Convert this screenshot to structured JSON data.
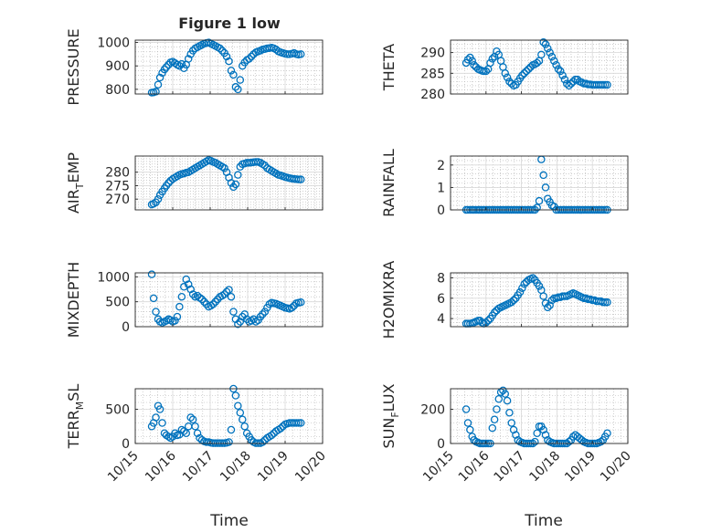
{
  "figure": {
    "title": "Figure 1 low",
    "xlabel": "Time"
  },
  "x_ticks": [
    "10/15",
    "10/16",
    "10/17",
    "10/18",
    "10/19",
    "10/20"
  ],
  "colors": {
    "marker": "#0072BD",
    "axis": "#262626",
    "grid": "#b0b0b0"
  },
  "chart_data": [
    {
      "type": "scatter",
      "ylabel": "PRESSURE",
      "xlim": [
        0,
        5
      ],
      "ylim": [
        780,
        1010
      ],
      "yticks": [
        800,
        900,
        1000
      ],
      "minor_grid": true,
      "x": [
        0.44,
        0.49,
        0.55,
        0.61,
        0.66,
        0.72,
        0.78,
        0.83,
        0.89,
        0.94,
        1.0,
        1.06,
        1.12,
        1.18,
        1.24,
        1.3,
        1.36,
        1.42,
        1.48,
        1.54,
        1.6,
        1.66,
        1.72,
        1.78,
        1.84,
        1.9,
        1.96,
        2.02,
        2.08,
        2.14,
        2.2,
        2.26,
        2.32,
        2.38,
        2.44,
        2.5,
        2.56,
        2.62,
        2.68,
        2.74,
        2.8,
        2.86,
        2.92,
        2.98,
        3.04,
        3.1,
        3.16,
        3.22,
        3.28,
        3.34,
        3.4,
        3.46,
        3.52,
        3.58,
        3.64,
        3.7,
        3.76,
        3.82,
        3.88,
        3.94,
        4.0,
        4.06,
        4.12,
        4.18,
        4.24,
        4.3,
        4.36,
        4.42
      ],
      "y": [
        786,
        787,
        790,
        820,
        850,
        870,
        885,
        895,
        905,
        915,
        918,
        912,
        905,
        900,
        908,
        890,
        905,
        930,
        950,
        965,
        975,
        980,
        985,
        990,
        995,
        998,
        1000,
        995,
        990,
        985,
        980,
        975,
        965,
        955,
        940,
        920,
        880,
        862,
        810,
        800,
        840,
        900,
        915,
        925,
        930,
        940,
        950,
        958,
        962,
        965,
        970,
        972,
        975,
        976,
        978,
        975,
        970,
        962,
        958,
        955,
        952,
        950,
        950,
        952,
        955,
        950,
        948,
        950
      ]
    },
    {
      "type": "scatter",
      "ylabel": "THETA",
      "xlim": [
        0,
        5
      ],
      "ylim": [
        280,
        293
      ],
      "yticks": [
        280,
        285,
        290
      ],
      "minor_grid": true,
      "x": [
        0.44,
        0.49,
        0.55,
        0.61,
        0.66,
        0.72,
        0.78,
        0.83,
        0.89,
        0.94,
        1.0,
        1.06,
        1.12,
        1.18,
        1.24,
        1.3,
        1.36,
        1.42,
        1.48,
        1.54,
        1.6,
        1.66,
        1.72,
        1.78,
        1.84,
        1.9,
        1.96,
        2.02,
        2.08,
        2.14,
        2.2,
        2.26,
        2.32,
        2.38,
        2.44,
        2.5,
        2.56,
        2.62,
        2.68,
        2.74,
        2.8,
        2.86,
        2.92,
        2.98,
        3.04,
        3.1,
        3.16,
        3.22,
        3.28,
        3.34,
        3.4,
        3.46,
        3.52,
        3.58,
        3.64,
        3.7,
        3.76,
        3.82,
        3.88,
        3.94,
        4.0,
        4.06,
        4.12,
        4.18,
        4.24,
        4.3,
        4.36,
        4.42
      ],
      "y": [
        287.5,
        288.3,
        288.8,
        288.0,
        287.0,
        286.5,
        286.0,
        285.8,
        285.6,
        285.5,
        285.5,
        286.0,
        287.5,
        288.5,
        289.0,
        290.3,
        289.5,
        288.0,
        286.5,
        285.0,
        284.0,
        283.0,
        282.5,
        282.0,
        282.2,
        283.0,
        283.8,
        284.5,
        285.0,
        285.5,
        286.0,
        286.5,
        287.0,
        287.2,
        287.5,
        288.0,
        289.5,
        292.5,
        292.0,
        291.0,
        290.0,
        289.0,
        288.0,
        287.0,
        286.0,
        285.5,
        284.5,
        283.5,
        282.5,
        282.0,
        282.5,
        283.0,
        283.5,
        283.5,
        283.0,
        282.8,
        282.5,
        282.5,
        282.3,
        282.3,
        282.2,
        282.2,
        282.2,
        282.2,
        282.2,
        282.2,
        282.2,
        282.2
      ]
    },
    {
      "type": "scatter",
      "ylabel": "AIR_TEMP",
      "xlim": [
        0,
        5
      ],
      "ylim": [
        266,
        286
      ],
      "yticks": [
        270,
        275,
        280
      ],
      "minor_grid": true,
      "x": [
        0.44,
        0.49,
        0.55,
        0.61,
        0.66,
        0.72,
        0.78,
        0.83,
        0.89,
        0.94,
        1.0,
        1.06,
        1.12,
        1.18,
        1.24,
        1.3,
        1.36,
        1.42,
        1.48,
        1.54,
        1.6,
        1.66,
        1.72,
        1.78,
        1.84,
        1.9,
        1.96,
        2.02,
        2.08,
        2.14,
        2.2,
        2.26,
        2.32,
        2.38,
        2.44,
        2.5,
        2.56,
        2.62,
        2.68,
        2.74,
        2.8,
        2.86,
        2.92,
        2.98,
        3.04,
        3.1,
        3.16,
        3.22,
        3.28,
        3.34,
        3.4,
        3.46,
        3.52,
        3.58,
        3.64,
        3.7,
        3.76,
        3.82,
        3.88,
        3.94,
        4.0,
        4.06,
        4.12,
        4.18,
        4.24,
        4.3,
        4.36,
        4.42
      ],
      "y": [
        268.0,
        268.3,
        268.8,
        270.0,
        271.5,
        272.8,
        274.0,
        275.0,
        276.0,
        276.8,
        277.5,
        278.0,
        278.5,
        279.0,
        279.3,
        279.5,
        279.8,
        280.0,
        280.5,
        281.0,
        281.5,
        282.0,
        282.5,
        283.0,
        283.5,
        284.0,
        284.5,
        284.2,
        283.8,
        283.5,
        283.0,
        282.5,
        282.0,
        281.5,
        280.0,
        278.0,
        276.0,
        274.5,
        275.5,
        279.0,
        282.0,
        283.0,
        283.2,
        283.5,
        283.5,
        283.6,
        283.7,
        283.8,
        283.8,
        283.5,
        283.0,
        282.5,
        281.5,
        281.0,
        280.5,
        280.0,
        279.5,
        279.0,
        278.8,
        278.5,
        278.2,
        278.0,
        277.8,
        277.6,
        277.5,
        277.4,
        277.3,
        277.3
      ]
    },
    {
      "type": "scatter",
      "ylabel": "RAINFALL",
      "xlim": [
        0,
        5
      ],
      "ylim": [
        0,
        2.4
      ],
      "yticks": [
        0,
        1,
        2
      ],
      "minor_grid": true,
      "x": [
        0.44,
        0.49,
        0.55,
        0.61,
        0.66,
        0.72,
        0.78,
        0.83,
        0.89,
        0.94,
        1.0,
        1.06,
        1.12,
        1.18,
        1.24,
        1.3,
        1.36,
        1.42,
        1.48,
        1.54,
        1.6,
        1.66,
        1.72,
        1.78,
        1.84,
        1.9,
        1.96,
        2.02,
        2.08,
        2.14,
        2.2,
        2.26,
        2.32,
        2.38,
        2.44,
        2.5,
        2.56,
        2.62,
        2.68,
        2.74,
        2.8,
        2.86,
        2.92,
        2.98,
        3.04,
        3.1,
        3.16,
        3.22,
        3.28,
        3.34,
        3.4,
        3.46,
        3.52,
        3.58,
        3.64,
        3.7,
        3.76,
        3.82,
        3.88,
        3.94,
        4.0,
        4.06,
        4.12,
        4.18,
        4.24,
        4.3,
        4.36,
        4.42
      ],
      "y": [
        0,
        0,
        0,
        0,
        0,
        0,
        0,
        0,
        0,
        0,
        0,
        0,
        0,
        0,
        0,
        0,
        0,
        0,
        0,
        0,
        0,
        0,
        0,
        0,
        0,
        0,
        0,
        0,
        0,
        0,
        0,
        0,
        0,
        0,
        0.1,
        0.4,
        2.25,
        1.55,
        1.0,
        0.5,
        0.35,
        0.2,
        0.15,
        0,
        0,
        0,
        0,
        0,
        0,
        0,
        0,
        0,
        0,
        0,
        0,
        0,
        0,
        0,
        0,
        0,
        0,
        0,
        0,
        0,
        0,
        0,
        0,
        0
      ]
    },
    {
      "type": "scatter",
      "ylabel": "MIXDEPTH",
      "xlim": [
        0,
        5
      ],
      "ylim": [
        0,
        1080
      ],
      "yticks": [
        0,
        500,
        1000
      ],
      "minor_grid": true,
      "x": [
        0.44,
        0.49,
        0.55,
        0.61,
        0.66,
        0.72,
        0.78,
        0.83,
        0.89,
        0.94,
        1.0,
        1.06,
        1.12,
        1.18,
        1.24,
        1.3,
        1.36,
        1.42,
        1.48,
        1.54,
        1.6,
        1.66,
        1.72,
        1.78,
        1.84,
        1.9,
        1.96,
        2.02,
        2.08,
        2.14,
        2.2,
        2.26,
        2.32,
        2.38,
        2.44,
        2.5,
        2.56,
        2.62,
        2.68,
        2.74,
        2.8,
        2.86,
        2.92,
        2.98,
        3.04,
        3.1,
        3.16,
        3.22,
        3.28,
        3.34,
        3.4,
        3.46,
        3.52,
        3.58,
        3.64,
        3.7,
        3.76,
        3.82,
        3.88,
        3.94,
        4.0,
        4.06,
        4.12,
        4.18,
        4.24,
        4.3,
        4.36,
        4.42
      ],
      "y": [
        1050,
        570,
        300,
        150,
        100,
        80,
        100,
        120,
        150,
        130,
        100,
        120,
        200,
        400,
        600,
        800,
        950,
        850,
        750,
        650,
        600,
        620,
        580,
        550,
        500,
        450,
        400,
        420,
        450,
        500,
        550,
        600,
        620,
        650,
        700,
        740,
        600,
        300,
        150,
        50,
        100,
        200,
        250,
        150,
        100,
        120,
        150,
        100,
        130,
        200,
        250,
        300,
        380,
        450,
        480,
        470,
        460,
        440,
        420,
        400,
        380,
        370,
        360,
        380,
        420,
        470,
        480,
        490
      ]
    },
    {
      "type": "scatter",
      "ylabel": "H2OMIXRA",
      "xlim": [
        0,
        5
      ],
      "ylim": [
        3.2,
        8.5
      ],
      "yticks": [
        4,
        6,
        8
      ],
      "minor_grid": true,
      "x": [
        0.44,
        0.49,
        0.55,
        0.61,
        0.66,
        0.72,
        0.78,
        0.83,
        0.89,
        0.94,
        1.0,
        1.06,
        1.12,
        1.18,
        1.24,
        1.3,
        1.36,
        1.42,
        1.48,
        1.54,
        1.6,
        1.66,
        1.72,
        1.78,
        1.84,
        1.9,
        1.96,
        2.02,
        2.08,
        2.14,
        2.2,
        2.26,
        2.32,
        2.38,
        2.44,
        2.5,
        2.56,
        2.62,
        2.68,
        2.74,
        2.8,
        2.86,
        2.92,
        2.98,
        3.04,
        3.1,
        3.16,
        3.22,
        3.28,
        3.34,
        3.4,
        3.46,
        3.52,
        3.58,
        3.64,
        3.7,
        3.76,
        3.82,
        3.88,
        3.94,
        4.0,
        4.06,
        4.12,
        4.18,
        4.24,
        4.3,
        4.36,
        4.42
      ],
      "y": [
        3.5,
        3.5,
        3.5,
        3.55,
        3.6,
        3.7,
        3.8,
        3.8,
        3.6,
        3.5,
        3.6,
        3.8,
        4.0,
        4.3,
        4.6,
        4.8,
        5.0,
        5.1,
        5.2,
        5.3,
        5.4,
        5.5,
        5.6,
        5.8,
        6.0,
        6.3,
        6.6,
        7.0,
        7.4,
        7.6,
        7.8,
        7.9,
        8.0,
        7.8,
        7.5,
        7.2,
        6.8,
        6.2,
        5.5,
        5.1,
        5.3,
        5.8,
        6.0,
        6.0,
        6.1,
        6.1,
        6.2,
        6.2,
        6.2,
        6.3,
        6.4,
        6.5,
        6.4,
        6.3,
        6.2,
        6.1,
        6.0,
        6.0,
        5.9,
        5.9,
        5.8,
        5.8,
        5.7,
        5.7,
        5.7,
        5.6,
        5.6,
        5.6
      ]
    },
    {
      "type": "scatter",
      "ylabel": "TERR_MSL",
      "xlim": [
        0,
        5
      ],
      "ylim": [
        0,
        800
      ],
      "yticks": [
        0,
        500
      ],
      "minor_grid": true,
      "x": [
        0.44,
        0.49,
        0.55,
        0.61,
        0.66,
        0.72,
        0.78,
        0.83,
        0.89,
        0.94,
        1.0,
        1.06,
        1.12,
        1.18,
        1.24,
        1.3,
        1.36,
        1.42,
        1.48,
        1.54,
        1.6,
        1.66,
        1.72,
        1.78,
        1.84,
        1.9,
        1.96,
        2.02,
        2.08,
        2.14,
        2.2,
        2.26,
        2.32,
        2.38,
        2.44,
        2.5,
        2.56,
        2.62,
        2.68,
        2.74,
        2.8,
        2.86,
        2.92,
        2.98,
        3.04,
        3.1,
        3.16,
        3.22,
        3.28,
        3.34,
        3.4,
        3.46,
        3.52,
        3.58,
        3.64,
        3.7,
        3.76,
        3.82,
        3.88,
        3.94,
        4.0,
        4.06,
        4.12,
        4.18,
        4.24,
        4.3,
        4.36,
        4.42
      ],
      "y": [
        250,
        300,
        380,
        550,
        500,
        300,
        150,
        120,
        100,
        80,
        100,
        150,
        120,
        130,
        200,
        180,
        150,
        250,
        380,
        350,
        250,
        150,
        80,
        50,
        30,
        20,
        20,
        10,
        5,
        5,
        5,
        5,
        5,
        5,
        10,
        20,
        200,
        800,
        700,
        550,
        450,
        350,
        250,
        150,
        100,
        50,
        20,
        5,
        5,
        5,
        20,
        50,
        80,
        100,
        120,
        150,
        180,
        200,
        220,
        250,
        280,
        290,
        300,
        300,
        300,
        300,
        300,
        300
      ]
    },
    {
      "type": "scatter",
      "ylabel": "SUN_FLUX",
      "xlim": [
        0,
        5
      ],
      "ylim": [
        0,
        320
      ],
      "yticks": [
        0,
        200
      ],
      "minor_grid": true,
      "x": [
        0.44,
        0.49,
        0.55,
        0.61,
        0.66,
        0.72,
        0.78,
        0.83,
        0.89,
        0.94,
        1.0,
        1.06,
        1.12,
        1.18,
        1.24,
        1.3,
        1.36,
        1.42,
        1.48,
        1.54,
        1.6,
        1.66,
        1.72,
        1.78,
        1.84,
        1.9,
        1.96,
        2.02,
        2.08,
        2.14,
        2.2,
        2.26,
        2.32,
        2.38,
        2.44,
        2.5,
        2.56,
        2.62,
        2.68,
        2.74,
        2.8,
        2.86,
        2.92,
        2.98,
        3.04,
        3.1,
        3.16,
        3.22,
        3.28,
        3.34,
        3.4,
        3.46,
        3.52,
        3.58,
        3.64,
        3.7,
        3.76,
        3.82,
        3.88,
        3.94,
        4.0,
        4.06,
        4.12,
        4.18,
        4.24,
        4.3,
        4.36,
        4.42
      ],
      "y": [
        200,
        120,
        80,
        40,
        20,
        10,
        5,
        0,
        0,
        0,
        0,
        0,
        0,
        90,
        140,
        200,
        260,
        300,
        310,
        290,
        250,
        180,
        120,
        80,
        50,
        20,
        10,
        5,
        0,
        0,
        0,
        0,
        0,
        10,
        60,
        100,
        100,
        80,
        50,
        20,
        10,
        5,
        0,
        0,
        0,
        0,
        0,
        0,
        0,
        10,
        20,
        40,
        50,
        40,
        30,
        20,
        10,
        5,
        0,
        0,
        0,
        0,
        0,
        5,
        10,
        20,
        40,
        60
      ]
    }
  ]
}
